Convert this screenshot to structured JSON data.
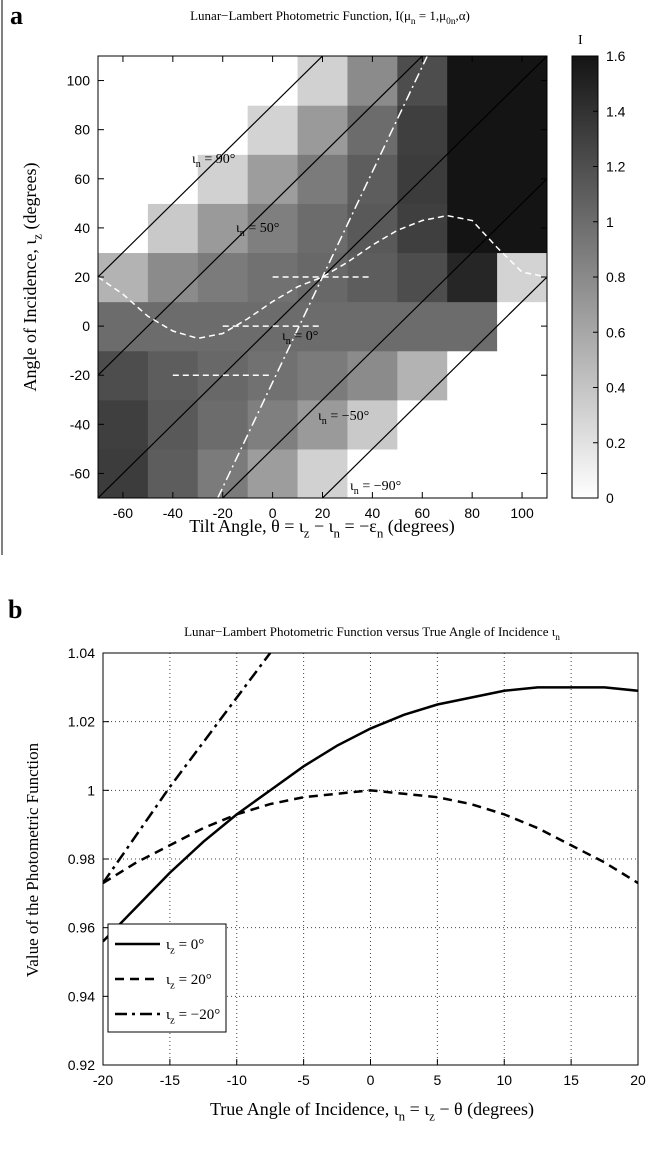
{
  "chart_data": [
    {
      "type": "heatmap",
      "panel": "a",
      "title": [
        "Lunar−Lambert Photometric Function, I(μ",
        "n",
        " = 1,μ",
        "0n",
        ",α)"
      ],
      "xlabel": [
        "Tilt Angle, θ = ι",
        "z",
        " − ι",
        "n",
        " = −ε",
        "n",
        " (degrees)"
      ],
      "ylabel": [
        "Angle of Incidence, ι",
        "z",
        " (degrees)"
      ],
      "x": [
        -60,
        -40,
        -20,
        0,
        20,
        40,
        60,
        80,
        100
      ],
      "y": [
        -60,
        -40,
        -20,
        0,
        20,
        40,
        60,
        80,
        100
      ],
      "z": [
        [
          1.33,
          1.1,
          0.9,
          0.67,
          0.31,
          0,
          0,
          0,
          0
        ],
        [
          1.31,
          1.13,
          1.0,
          0.87,
          0.69,
          0.37,
          0,
          0,
          0
        ],
        [
          1.21,
          1.1,
          1.03,
          0.97,
          0.9,
          0.79,
          0.52,
          0,
          0
        ],
        [
          1.0,
          1.0,
          1.0,
          1.0,
          1.0,
          1.0,
          1.0,
          1.0,
          0
        ],
        [
          0.52,
          0.79,
          0.9,
          0.97,
          1.03,
          1.1,
          1.21,
          1.48,
          0.3
        ],
        [
          0,
          0.37,
          0.69,
          0.87,
          1.0,
          1.13,
          1.31,
          1.6,
          1.6
        ],
        [
          0,
          0,
          0.31,
          0.67,
          0.9,
          1.1,
          1.33,
          1.6,
          1.6
        ],
        [
          0,
          0,
          0,
          0.3,
          0.69,
          1.0,
          1.31,
          1.6,
          1.6
        ],
        [
          0,
          0,
          0,
          0,
          0.31,
          0.79,
          1.21,
          1.6,
          1.6
        ]
      ],
      "xlim": [
        -70,
        110
      ],
      "ylim": [
        -70,
        110
      ],
      "xticks": [
        -60,
        -40,
        -20,
        0,
        20,
        40,
        60,
        80,
        100
      ],
      "yticks": [
        -60,
        -40,
        -20,
        0,
        20,
        40,
        60,
        80,
        100
      ],
      "colormap": "gray",
      "clim": [
        0,
        1.6
      ],
      "colorbar_label": "I",
      "cticks": [
        0,
        0.2,
        0.4,
        0.6,
        0.8,
        1,
        1.2,
        1.4,
        1.6
      ],
      "iso_lines": {
        "color": "#000000",
        "values": [
          90,
          50,
          0,
          -50,
          -90
        ],
        "labels": [
          [
            "ι",
            "n",
            " = 90°"
          ],
          [
            "ι",
            "n",
            " = 50°"
          ],
          [
            "ι",
            "n",
            " = 0°"
          ],
          [
            "ι",
            "n",
            " = −50°"
          ],
          [
            "ι",
            "n",
            " = −90°"
          ]
        ]
      },
      "curves": [
        {
          "color": "#ffffff",
          "dash": "dashed",
          "x": [
            -70,
            -60,
            -50,
            -40,
            -30,
            -20,
            -10,
            0,
            10,
            20,
            30,
            40,
            50,
            60,
            70,
            80,
            90,
            100,
            110
          ],
          "y": [
            20,
            13,
            4,
            -2,
            -5,
            -3,
            3,
            10,
            16,
            20,
            26,
            33,
            39,
            43,
            45,
            43,
            32,
            22,
            20
          ]
        },
        {
          "color": "#ffffff",
          "dash": "dashdot",
          "x": [
            -22,
            62
          ],
          "y": [
            -70,
            110
          ]
        },
        {
          "color": "#ffffff",
          "dash": "dashed",
          "x": [
            0,
            40
          ],
          "y": [
            20,
            20
          ]
        },
        {
          "color": "#ffffff",
          "dash": "dashed",
          "x": [
            -20,
            20
          ],
          "y": [
            0,
            0
          ]
        },
        {
          "color": "#ffffff",
          "dash": "dashed",
          "x": [
            -40,
            0
          ],
          "y": [
            -20,
            -20
          ]
        }
      ]
    },
    {
      "type": "line",
      "panel": "b",
      "title": [
        "Lunar−Lambert Photometric Function versus True Angle of Incidence ι",
        "n"
      ],
      "xlabel": [
        "True Angle of Incidence, ι",
        "n",
        " = ι",
        "z",
        " − θ (degrees)"
      ],
      "ylabel": "Value of the Photometric Function",
      "x": [
        -20,
        -17.5,
        -15,
        -12.5,
        -10,
        -7.5,
        -5,
        -2.5,
        0,
        2.5,
        5,
        7.5,
        10,
        12.5,
        15,
        17.5,
        20
      ],
      "series": [
        {
          "name": [
            "ι",
            "z",
            " = 0°"
          ],
          "color": "#000000",
          "dash": "solid",
          "values": [
            0.956,
            0.966,
            0.976,
            0.985,
            0.993,
            1.0,
            1.007,
            1.013,
            1.018,
            1.022,
            1.025,
            1.027,
            1.029,
            1.03,
            1.03,
            1.03,
            1.029
          ]
        },
        {
          "name": [
            "ι",
            "z",
            " = 20°"
          ],
          "color": "#000000",
          "dash": "dashed",
          "values": [
            0.973,
            0.979,
            0.984,
            0.989,
            0.993,
            0.996,
            0.998,
            0.999,
            1.0,
            0.999,
            0.998,
            0.996,
            0.993,
            0.989,
            0.984,
            0.979,
            0.973
          ]
        },
        {
          "name": [
            "ι",
            "z",
            " = −20°"
          ],
          "color": "#000000",
          "dash": "dashdot",
          "values": [
            0.973,
            0.987,
            1.001,
            1.014,
            1.027,
            1.04,
            null,
            null,
            null,
            null,
            null,
            null,
            null,
            null,
            null,
            null,
            null
          ]
        }
      ],
      "xlim": [
        -20,
        20
      ],
      "ylim": [
        0.92,
        1.04
      ],
      "xticks": [
        -20,
        -15,
        -10,
        -5,
        0,
        5,
        10,
        15,
        20
      ],
      "yticks": [
        0.92,
        0.94,
        0.96,
        0.98,
        1,
        1.02,
        1.04
      ],
      "grid": true,
      "legend": "lower left"
    }
  ]
}
